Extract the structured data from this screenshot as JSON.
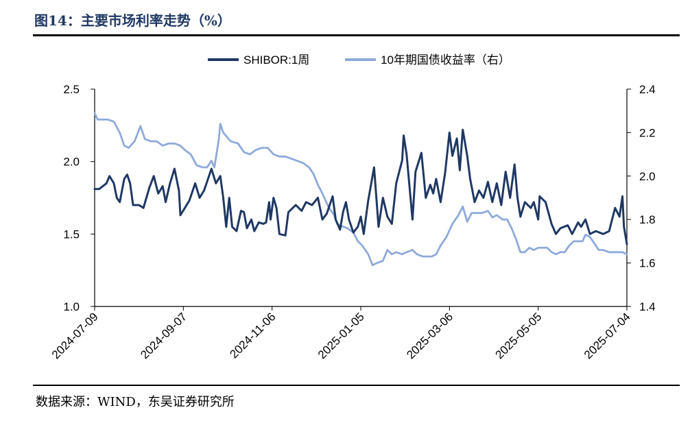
{
  "header": {
    "title": "图14：主要市场利率走势（%）"
  },
  "footer": {
    "source": "数据来源：WIND，东吴证券研究所"
  },
  "colors": {
    "shibor": "#1f3864",
    "bond": "#8eaadb",
    "axis": "#000000"
  },
  "chart_data": {
    "type": "line",
    "title": "",
    "legend_position": "top-center",
    "grid": false,
    "x_tick_labels": [
      "2024-07-09",
      "2024-09-07",
      "2024-11-06",
      "2025-01-05",
      "2025-03-06",
      "2025-05-05",
      "2025-07-04"
    ],
    "x_range": [
      "2024-07-09",
      "2025-07-04"
    ],
    "y_left": {
      "range": [
        1.0,
        2.5
      ],
      "ticks": [
        "1.0",
        "1.5",
        "2.0",
        "2.5"
      ]
    },
    "y_right": {
      "range": [
        1.4,
        2.4
      ],
      "ticks": [
        "1.4",
        "1.6",
        "1.8",
        "2.0",
        "2.2",
        "2.4"
      ]
    },
    "series": [
      {
        "name": "SHIBOR:1周",
        "axis": "left",
        "points": [
          [
            "2024-07-09",
            1.81
          ],
          [
            "2024-07-12",
            1.81
          ],
          [
            "2024-07-17",
            1.85
          ],
          [
            "2024-07-19",
            1.9
          ],
          [
            "2024-07-22",
            1.85
          ],
          [
            "2024-07-24",
            1.75
          ],
          [
            "2024-07-26",
            1.72
          ],
          [
            "2024-07-29",
            1.88
          ],
          [
            "2024-07-31",
            1.91
          ],
          [
            "2024-08-02",
            1.85
          ],
          [
            "2024-08-04",
            1.7
          ],
          [
            "2024-08-08",
            1.7
          ],
          [
            "2024-08-11",
            1.68
          ],
          [
            "2024-08-15",
            1.82
          ],
          [
            "2024-08-18",
            1.9
          ],
          [
            "2024-08-21",
            1.78
          ],
          [
            "2024-08-24",
            1.83
          ],
          [
            "2024-08-26",
            1.72
          ],
          [
            "2024-08-29",
            1.85
          ],
          [
            "2024-09-01",
            1.95
          ],
          [
            "2024-09-04",
            1.8
          ],
          [
            "2024-09-05",
            1.63
          ],
          [
            "2024-09-08",
            1.68
          ],
          [
            "2024-09-11",
            1.73
          ],
          [
            "2024-09-15",
            1.85
          ],
          [
            "2024-09-18",
            1.75
          ],
          [
            "2024-09-21",
            1.8
          ],
          [
            "2024-09-26",
            1.95
          ],
          [
            "2024-09-29",
            1.85
          ],
          [
            "2024-10-02",
            1.9
          ],
          [
            "2024-10-04",
            1.75
          ],
          [
            "2024-10-06",
            1.55
          ],
          [
            "2024-10-08",
            1.75
          ],
          [
            "2024-10-10",
            1.55
          ],
          [
            "2024-10-13",
            1.52
          ],
          [
            "2024-10-16",
            1.66
          ],
          [
            "2024-10-18",
            1.65
          ],
          [
            "2024-10-20",
            1.54
          ],
          [
            "2024-10-23",
            1.6
          ],
          [
            "2024-10-25",
            1.52
          ],
          [
            "2024-10-28",
            1.58
          ],
          [
            "2024-10-31",
            1.57
          ],
          [
            "2024-11-02",
            1.58
          ],
          [
            "2024-11-04",
            1.72
          ],
          [
            "2024-11-05",
            1.6
          ],
          [
            "2024-11-07",
            1.75
          ],
          [
            "2024-11-09",
            1.68
          ],
          [
            "2024-11-11",
            1.5
          ],
          [
            "2024-11-15",
            1.49
          ],
          [
            "2024-11-17",
            1.65
          ],
          [
            "2024-11-22",
            1.7
          ],
          [
            "2024-11-26",
            1.66
          ],
          [
            "2024-11-29",
            1.72
          ],
          [
            "2024-12-03",
            1.7
          ],
          [
            "2024-12-07",
            1.75
          ],
          [
            "2024-12-10",
            1.6
          ],
          [
            "2024-12-13",
            1.64
          ],
          [
            "2024-12-17",
            1.76
          ],
          [
            "2024-12-19",
            1.6
          ],
          [
            "2024-12-22",
            1.53
          ],
          [
            "2024-12-24",
            1.65
          ],
          [
            "2024-12-26",
            1.72
          ],
          [
            "2024-12-28",
            1.6
          ],
          [
            "2024-12-31",
            1.51
          ],
          [
            "2025-01-03",
            1.55
          ],
          [
            "2025-01-05",
            1.62
          ],
          [
            "2025-01-07",
            1.5
          ],
          [
            "2025-01-10",
            1.73
          ],
          [
            "2025-01-14",
            1.96
          ],
          [
            "2025-01-17",
            1.55
          ],
          [
            "2025-01-20",
            1.75
          ],
          [
            "2025-01-23",
            1.62
          ],
          [
            "2025-01-26",
            1.57
          ],
          [
            "2025-01-29",
            1.85
          ],
          [
            "2025-02-02",
            2.01
          ],
          [
            "2025-02-03",
            2.18
          ],
          [
            "2025-02-05",
            2.05
          ],
          [
            "2025-02-09",
            1.6
          ],
          [
            "2025-02-11",
            1.93
          ],
          [
            "2025-02-15",
            2.06
          ],
          [
            "2025-02-18",
            1.75
          ],
          [
            "2025-02-21",
            1.84
          ],
          [
            "2025-02-23",
            1.78
          ],
          [
            "2025-02-25",
            1.88
          ],
          [
            "2025-02-28",
            1.72
          ],
          [
            "2025-03-03",
            1.92
          ],
          [
            "2025-03-06",
            2.2
          ],
          [
            "2025-03-08",
            2.04
          ],
          [
            "2025-03-11",
            2.16
          ],
          [
            "2025-03-13",
            1.94
          ],
          [
            "2025-03-15",
            2.22
          ],
          [
            "2025-03-18",
            2.04
          ],
          [
            "2025-03-20",
            1.88
          ],
          [
            "2025-03-23",
            1.72
          ],
          [
            "2025-03-26",
            1.8
          ],
          [
            "2025-03-29",
            1.75
          ],
          [
            "2025-04-01",
            1.86
          ],
          [
            "2025-04-04",
            1.72
          ],
          [
            "2025-04-07",
            1.85
          ],
          [
            "2025-04-10",
            1.7
          ],
          [
            "2025-04-13",
            1.93
          ],
          [
            "2025-04-16",
            1.75
          ],
          [
            "2025-04-19",
            1.98
          ],
          [
            "2025-04-21",
            1.75
          ],
          [
            "2025-04-23",
            1.62
          ],
          [
            "2025-04-26",
            1.72
          ],
          [
            "2025-04-30",
            1.68
          ],
          [
            "2025-05-02",
            1.72
          ],
          [
            "2025-05-05",
            1.6
          ],
          [
            "2025-05-06",
            1.76
          ],
          [
            "2025-05-10",
            1.72
          ],
          [
            "2025-05-14",
            1.57
          ],
          [
            "2025-05-17",
            1.5
          ],
          [
            "2025-05-20",
            1.54
          ],
          [
            "2025-05-25",
            1.56
          ],
          [
            "2025-05-28",
            1.5
          ],
          [
            "2025-06-01",
            1.58
          ],
          [
            "2025-06-03",
            1.55
          ],
          [
            "2025-06-06",
            1.6
          ],
          [
            "2025-06-09",
            1.5
          ],
          [
            "2025-06-13",
            1.52
          ],
          [
            "2025-06-18",
            1.5
          ],
          [
            "2025-06-22",
            1.52
          ],
          [
            "2025-06-24",
            1.6
          ],
          [
            "2025-06-26",
            1.68
          ],
          [
            "2025-06-29",
            1.62
          ],
          [
            "2025-07-01",
            1.76
          ],
          [
            "2025-07-02",
            1.55
          ],
          [
            "2025-07-04",
            1.43
          ]
        ]
      },
      {
        "name": "10年期国债收益率（右）",
        "axis": "right",
        "points": [
          [
            "2024-07-09",
            2.29
          ],
          [
            "2024-07-11",
            2.26
          ],
          [
            "2024-07-15",
            2.26
          ],
          [
            "2024-07-18",
            2.26
          ],
          [
            "2024-07-22",
            2.25
          ],
          [
            "2024-07-26",
            2.2
          ],
          [
            "2024-07-29",
            2.14
          ],
          [
            "2024-08-01",
            2.13
          ],
          [
            "2024-08-05",
            2.16
          ],
          [
            "2024-08-09",
            2.23
          ],
          [
            "2024-08-12",
            2.17
          ],
          [
            "2024-08-16",
            2.16
          ],
          [
            "2024-08-20",
            2.16
          ],
          [
            "2024-08-24",
            2.14
          ],
          [
            "2024-08-28",
            2.15
          ],
          [
            "2024-09-01",
            2.15
          ],
          [
            "2024-09-05",
            2.14
          ],
          [
            "2024-09-08",
            2.12
          ],
          [
            "2024-09-12",
            2.1
          ],
          [
            "2024-09-16",
            2.05
          ],
          [
            "2024-09-20",
            2.04
          ],
          [
            "2024-09-23",
            2.04
          ],
          [
            "2024-09-26",
            2.07
          ],
          [
            "2024-09-28",
            2.04
          ],
          [
            "2024-10-01",
            2.17
          ],
          [
            "2024-10-02",
            2.24
          ],
          [
            "2024-10-04",
            2.2
          ],
          [
            "2024-10-09",
            2.16
          ],
          [
            "2024-10-14",
            2.15
          ],
          [
            "2024-10-18",
            2.11
          ],
          [
            "2024-10-22",
            2.1
          ],
          [
            "2024-10-26",
            2.12
          ],
          [
            "2024-10-30",
            2.13
          ],
          [
            "2024-11-03",
            2.13
          ],
          [
            "2024-11-07",
            2.1
          ],
          [
            "2024-11-11",
            2.09
          ],
          [
            "2024-11-15",
            2.09
          ],
          [
            "2024-11-19",
            2.08
          ],
          [
            "2024-11-23",
            2.07
          ],
          [
            "2024-11-27",
            2.06
          ],
          [
            "2024-12-01",
            2.04
          ],
          [
            "2024-12-04",
            2.01
          ],
          [
            "2024-12-07",
            1.96
          ],
          [
            "2024-12-10",
            1.92
          ],
          [
            "2024-12-14",
            1.86
          ],
          [
            "2024-12-18",
            1.82
          ],
          [
            "2024-12-20",
            1.78
          ],
          [
            "2024-12-23",
            1.77
          ],
          [
            "2024-12-27",
            1.76
          ],
          [
            "2024-12-31",
            1.74
          ],
          [
            "2025-01-03",
            1.7
          ],
          [
            "2025-01-06",
            1.68
          ],
          [
            "2025-01-10",
            1.64
          ],
          [
            "2025-01-13",
            1.59
          ],
          [
            "2025-01-16",
            1.6
          ],
          [
            "2025-01-20",
            1.61
          ],
          [
            "2025-01-23",
            1.66
          ],
          [
            "2025-01-26",
            1.64
          ],
          [
            "2025-01-29",
            1.65
          ],
          [
            "2025-02-02",
            1.64
          ],
          [
            "2025-02-05",
            1.65
          ],
          [
            "2025-02-09",
            1.66
          ],
          [
            "2025-02-12",
            1.64
          ],
          [
            "2025-02-16",
            1.63
          ],
          [
            "2025-02-19",
            1.63
          ],
          [
            "2025-02-22",
            1.63
          ],
          [
            "2025-02-25",
            1.64
          ],
          [
            "2025-02-28",
            1.68
          ],
          [
            "2025-03-04",
            1.72
          ],
          [
            "2025-03-08",
            1.78
          ],
          [
            "2025-03-12",
            1.82
          ],
          [
            "2025-03-15",
            1.86
          ],
          [
            "2025-03-18",
            1.79
          ],
          [
            "2025-03-21",
            1.83
          ],
          [
            "2025-03-24",
            1.83
          ],
          [
            "2025-03-28",
            1.83
          ],
          [
            "2025-04-01",
            1.84
          ],
          [
            "2025-04-04",
            1.81
          ],
          [
            "2025-04-07",
            1.82
          ],
          [
            "2025-04-11",
            1.8
          ],
          [
            "2025-04-14",
            1.8
          ],
          [
            "2025-04-17",
            1.76
          ],
          [
            "2025-04-20",
            1.71
          ],
          [
            "2025-04-23",
            1.65
          ],
          [
            "2025-04-26",
            1.65
          ],
          [
            "2025-04-29",
            1.67
          ],
          [
            "2025-05-02",
            1.66
          ],
          [
            "2025-05-05",
            1.67
          ],
          [
            "2025-05-08",
            1.67
          ],
          [
            "2025-05-11",
            1.67
          ],
          [
            "2025-05-14",
            1.65
          ],
          [
            "2025-05-17",
            1.64
          ],
          [
            "2025-05-20",
            1.65
          ],
          [
            "2025-05-23",
            1.65
          ],
          [
            "2025-05-26",
            1.68
          ],
          [
            "2025-05-29",
            1.7
          ],
          [
            "2025-06-01",
            1.7
          ],
          [
            "2025-06-04",
            1.7
          ],
          [
            "2025-06-06",
            1.73
          ],
          [
            "2025-06-09",
            1.72
          ],
          [
            "2025-06-12",
            1.69
          ],
          [
            "2025-06-15",
            1.66
          ],
          [
            "2025-06-18",
            1.66
          ],
          [
            "2025-06-22",
            1.65
          ],
          [
            "2025-06-25",
            1.65
          ],
          [
            "2025-06-28",
            1.65
          ],
          [
            "2025-07-01",
            1.65
          ],
          [
            "2025-07-04",
            1.64
          ]
        ]
      }
    ]
  }
}
